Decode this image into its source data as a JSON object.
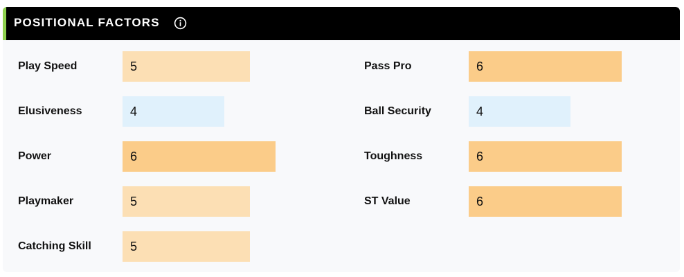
{
  "panel": {
    "title": "POSITIONAL FACTORS",
    "info_icon": "info-circle-icon",
    "accent_color": "#8fd14f",
    "header_color": "#000000"
  },
  "scale": {
    "max": 10
  },
  "colors": {
    "low": "#e0f1fc",
    "mid": "#fcdfb4",
    "high": "#fbcc89"
  },
  "left_factors": [
    {
      "label": "Play Speed",
      "value": 5,
      "level": "mid"
    },
    {
      "label": "Elusiveness",
      "value": 4,
      "level": "low"
    },
    {
      "label": "Power",
      "value": 6,
      "level": "high"
    },
    {
      "label": "Playmaker",
      "value": 5,
      "level": "mid"
    },
    {
      "label": "Catching Skill",
      "value": 5,
      "level": "mid"
    }
  ],
  "right_factors": [
    {
      "label": "Pass Pro",
      "value": 6,
      "level": "high"
    },
    {
      "label": "Ball Security",
      "value": 4,
      "level": "low"
    },
    {
      "label": "Toughness",
      "value": 6,
      "level": "high"
    },
    {
      "label": "ST Value",
      "value": 6,
      "level": "high"
    }
  ]
}
